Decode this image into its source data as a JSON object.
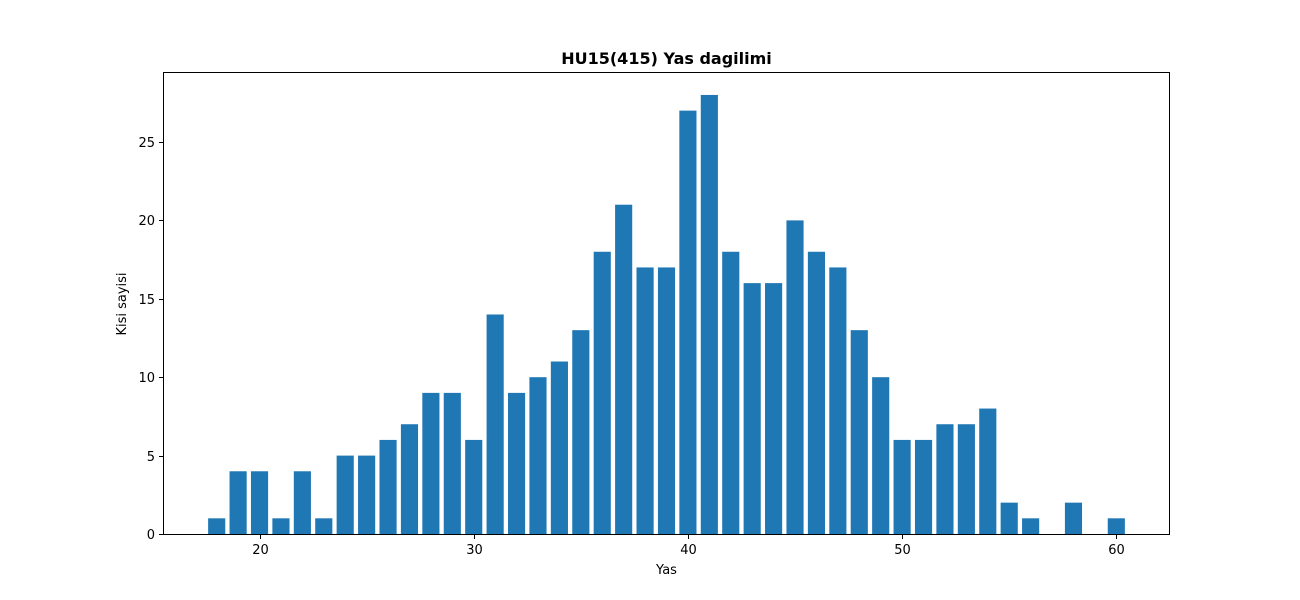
{
  "chart_data": {
    "type": "bar",
    "title": "HU15(415) Yas dagilimi",
    "xlabel": "Yas",
    "ylabel": "Kisi sayisi",
    "x": [
      18,
      19,
      20,
      21,
      22,
      23,
      24,
      25,
      26,
      27,
      28,
      29,
      30,
      31,
      32,
      33,
      34,
      35,
      36,
      37,
      38,
      39,
      40,
      41,
      42,
      43,
      44,
      45,
      46,
      47,
      48,
      49,
      50,
      51,
      52,
      53,
      54,
      55,
      56,
      58,
      60
    ],
    "values": [
      1,
      4,
      4,
      1,
      4,
      1,
      5,
      5,
      6,
      7,
      9,
      9,
      6,
      14,
      9,
      10,
      11,
      13,
      18,
      21,
      17,
      17,
      27,
      28,
      18,
      16,
      16,
      20,
      18,
      17,
      13,
      10,
      6,
      6,
      7,
      7,
      8,
      2,
      1,
      2,
      1
    ],
    "xlim": [
      15.54,
      62.46
    ],
    "ylim": [
      0,
      29.4
    ],
    "xticks": [
      20,
      30,
      40,
      50,
      60
    ],
    "yticks": [
      0,
      5,
      10,
      15,
      20,
      25
    ],
    "bar_color": "#1f77b4",
    "grid": false,
    "legend": false
  }
}
